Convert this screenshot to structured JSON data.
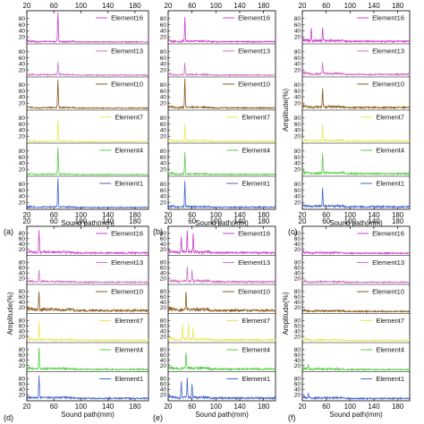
{
  "figure": {
    "ylabel": "Amplitude(%)",
    "xlabel": "Sound path(mm)"
  },
  "chart_data": [
    {
      "type": "line",
      "label": "(a)",
      "xlabel": "Sound path(mm)",
      "ylabel": "Amplitude(%)",
      "xlim": [
        20,
        200
      ],
      "ylim": [
        0,
        100
      ],
      "xticks": [
        20,
        60,
        100,
        140,
        180
      ],
      "yticks": [
        20,
        40,
        60,
        80
      ],
      "top_axis_labels": true,
      "bottom_axis_labels": true,
      "ylabel_shown": false,
      "series": [
        {
          "name": "Element16",
          "color": "#cc44cc",
          "peaks": [
            {
              "x": 66,
              "y": 95
            }
          ],
          "noise": 5
        },
        {
          "name": "Element13",
          "color": "#d070c8",
          "peaks": [
            {
              "x": 66,
              "y": 42
            }
          ],
          "noise": 5
        },
        {
          "name": "Element10",
          "color": "#8b5a1a",
          "peaks": [
            {
              "x": 66,
              "y": 92
            }
          ],
          "noise": 5
        },
        {
          "name": "Element7",
          "color": "#e8e858",
          "peaks": [
            {
              "x": 66,
              "y": 70
            }
          ],
          "noise": 4
        },
        {
          "name": "Element4",
          "color": "#55cc44",
          "peaks": [
            {
              "x": 66,
              "y": 88
            }
          ],
          "noise": 4
        },
        {
          "name": "Element1",
          "color": "#4466cc",
          "peaks": [
            {
              "x": 66,
              "y": 95
            }
          ],
          "noise": 5
        }
      ]
    },
    {
      "type": "line",
      "label": "(b)",
      "xlabel": "Sound path(mm)",
      "ylabel": "Amplitude(%)",
      "xlim": [
        20,
        200
      ],
      "ylim": [
        0,
        100
      ],
      "xticks": [
        20,
        60,
        100,
        140,
        180
      ],
      "yticks": [
        20,
        40,
        60,
        80
      ],
      "top_axis_labels": true,
      "bottom_axis_labels": true,
      "ylabel_shown": false,
      "series": [
        {
          "name": "Element16",
          "color": "#cc44cc",
          "peaks": [
            {
              "x": 48,
              "y": 82
            }
          ],
          "noise": 6
        },
        {
          "name": "Element13",
          "color": "#d070c8",
          "peaks": [
            {
              "x": 48,
              "y": 40
            }
          ],
          "noise": 5
        },
        {
          "name": "Element10",
          "color": "#8b5a1a",
          "peaks": [
            {
              "x": 48,
              "y": 95
            }
          ],
          "noise": 6
        },
        {
          "name": "Element7",
          "color": "#e8e858",
          "peaks": [
            {
              "x": 48,
              "y": 55
            }
          ],
          "noise": 5
        },
        {
          "name": "Element4",
          "color": "#55cc44",
          "peaks": [
            {
              "x": 48,
              "y": 72
            }
          ],
          "noise": 5
        },
        {
          "name": "Element1",
          "color": "#4466cc",
          "peaks": [
            {
              "x": 48,
              "y": 85
            }
          ],
          "noise": 6
        }
      ]
    },
    {
      "type": "line",
      "label": "(c)",
      "xlabel": "Sound path(mm)",
      "ylabel": "Amplitude(%)",
      "xlim": [
        20,
        200
      ],
      "ylim": [
        0,
        100
      ],
      "xticks": [
        20,
        60,
        100,
        140,
        180
      ],
      "yticks": [
        20,
        40,
        60,
        80
      ],
      "top_axis_labels": true,
      "bottom_axis_labels": true,
      "ylabel_shown": true,
      "series": [
        {
          "name": "Element16",
          "color": "#cc44cc",
          "peaks": [
            {
              "x": 35,
              "y": 45
            },
            {
              "x": 54,
              "y": 40
            }
          ],
          "noise": 8
        },
        {
          "name": "Element13",
          "color": "#d070c8",
          "peaks": [
            {
              "x": 54,
              "y": 40
            }
          ],
          "noise": 8
        },
        {
          "name": "Element10",
          "color": "#8b5a1a",
          "peaks": [
            {
              "x": 54,
              "y": 60
            }
          ],
          "noise": 8
        },
        {
          "name": "Element7",
          "color": "#e8e858",
          "peaks": [
            {
              "x": 54,
              "y": 55
            }
          ],
          "noise": 6
        },
        {
          "name": "Element4",
          "color": "#55cc44",
          "peaks": [
            {
              "x": 54,
              "y": 62
            }
          ],
          "noise": 8
        },
        {
          "name": "Element1",
          "color": "#4466cc",
          "peaks": [
            {
              "x": 54,
              "y": 62
            }
          ],
          "noise": 8
        }
      ]
    },
    {
      "type": "line",
      "label": "(d)",
      "xlabel": "Sound path(mm)",
      "ylabel": "Amplitude(%)",
      "xlim": [
        20,
        200
      ],
      "ylim": [
        0,
        100
      ],
      "xticks": [
        20,
        60,
        100,
        140,
        180
      ],
      "yticks": [
        20,
        40,
        60,
        80
      ],
      "top_axis_labels": true,
      "bottom_axis_labels": true,
      "ylabel_shown": true,
      "series": [
        {
          "name": "Element16",
          "color": "#cc44cc",
          "peaks": [
            {
              "x": 38,
              "y": 85
            }
          ],
          "noise": 9
        },
        {
          "name": "Element13",
          "color": "#d070c8",
          "peaks": [
            {
              "x": 38,
              "y": 45
            }
          ],
          "noise": 8
        },
        {
          "name": "Element10",
          "color": "#8b5a1a",
          "peaks": [
            {
              "x": 38,
              "y": 70
            }
          ],
          "noise": 12
        },
        {
          "name": "Element7",
          "color": "#e8e858",
          "peaks": [
            {
              "x": 38,
              "y": 70
            }
          ],
          "noise": 8
        },
        {
          "name": "Element4",
          "color": "#55cc44",
          "peaks": [
            {
              "x": 38,
              "y": 80
            }
          ],
          "noise": 8
        },
        {
          "name": "Element1",
          "color": "#4466cc",
          "peaks": [
            {
              "x": 38,
              "y": 85
            }
          ],
          "noise": 9
        }
      ]
    },
    {
      "type": "line",
      "label": "(e)",
      "xlabel": "Sound path(mm)",
      "ylabel": "Amplitude(%)",
      "xlim": [
        20,
        200
      ],
      "ylim": [
        0,
        100
      ],
      "xticks": [
        20,
        60,
        100,
        140,
        180
      ],
      "yticks": [
        20,
        40,
        60,
        80
      ],
      "top_axis_labels": true,
      "bottom_axis_labels": true,
      "ylabel_shown": false,
      "series": [
        {
          "name": "Element16",
          "color": "#cc44cc",
          "peaks": [
            {
              "x": 42,
              "y": 60
            },
            {
              "x": 52,
              "y": 85
            },
            {
              "x": 62,
              "y": 70
            }
          ],
          "noise": 10
        },
        {
          "name": "Element13",
          "color": "#d070c8",
          "peaks": [
            {
              "x": 52,
              "y": 55
            },
            {
              "x": 60,
              "y": 40
            }
          ],
          "noise": 10
        },
        {
          "name": "Element10",
          "color": "#8b5a1a",
          "peaks": [
            {
              "x": 50,
              "y": 70
            }
          ],
          "noise": 12
        },
        {
          "name": "Element7",
          "color": "#e8e858",
          "peaks": [
            {
              "x": 44,
              "y": 55
            },
            {
              "x": 54,
              "y": 60
            },
            {
              "x": 62,
              "y": 45
            }
          ],
          "noise": 10
        },
        {
          "name": "Element4",
          "color": "#55cc44",
          "peaks": [
            {
              "x": 50,
              "y": 60
            }
          ],
          "noise": 10
        },
        {
          "name": "Element1",
          "color": "#4466cc",
          "peaks": [
            {
              "x": 42,
              "y": 60
            },
            {
              "x": 52,
              "y": 75
            },
            {
              "x": 60,
              "y": 50
            }
          ],
          "noise": 10
        }
      ]
    },
    {
      "type": "line",
      "label": "(f)",
      "xlabel": "Sound path(mm)",
      "ylabel": "Amplitude(%)",
      "xlim": [
        20,
        200
      ],
      "ylim": [
        0,
        100
      ],
      "xticks": [
        20,
        60,
        100,
        140,
        180
      ],
      "yticks": [
        20,
        40,
        60,
        80
      ],
      "top_axis_labels": true,
      "bottom_axis_labels": true,
      "ylabel_shown": true,
      "series": [
        {
          "name": "Element16",
          "color": "#cc44cc",
          "peaks": [],
          "noise": 7
        },
        {
          "name": "Element13",
          "color": "#d070c8",
          "peaks": [],
          "noise": 7
        },
        {
          "name": "Element10",
          "color": "#8b5a1a",
          "peaks": [],
          "noise": 7
        },
        {
          "name": "Element7",
          "color": "#e8e858",
          "peaks": [],
          "noise": 7
        },
        {
          "name": "Element4",
          "color": "#55cc44",
          "peaks": [
            {
              "x": 30,
              "y": 15
            }
          ],
          "noise": 7
        },
        {
          "name": "Element1",
          "color": "#4466cc",
          "peaks": [
            {
              "x": 30,
              "y": 18
            }
          ],
          "noise": 8
        }
      ]
    }
  ]
}
